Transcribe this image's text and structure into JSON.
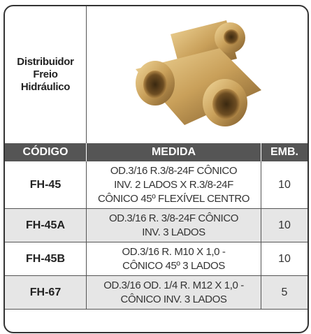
{
  "product": {
    "name_lines": [
      "Distribuidor",
      "Freio",
      "Hidráulico"
    ]
  },
  "table": {
    "headers": [
      "CÓDIGO",
      "MEDIDA",
      "EMB."
    ],
    "rows": [
      {
        "code": "FH-45",
        "medida": [
          "OD.3/16 R.3/8-24F CÔNICO",
          "INV. 2 LADOS X R.3/8-24F",
          "CÔNICO 45º FLEXÍVEL CENTRO"
        ],
        "emb": "10"
      },
      {
        "code": "FH-45A",
        "medida": [
          "OD.3/16 R. 3/8-24F CÔNICO",
          "INV. 3 LADOS"
        ],
        "emb": "10"
      },
      {
        "code": "FH-45B",
        "medida": [
          "OD.3/16 R. M10 X 1,0 -",
          "CÔNICO 45º 3 LADOS"
        ],
        "emb": "10"
      },
      {
        "code": "FH-67",
        "medida": [
          "OD.3/16 OD. 1/4 R. M12 X 1,0 -",
          "CÔNICO INV. 3 LADOS"
        ],
        "emb": "5"
      }
    ]
  }
}
